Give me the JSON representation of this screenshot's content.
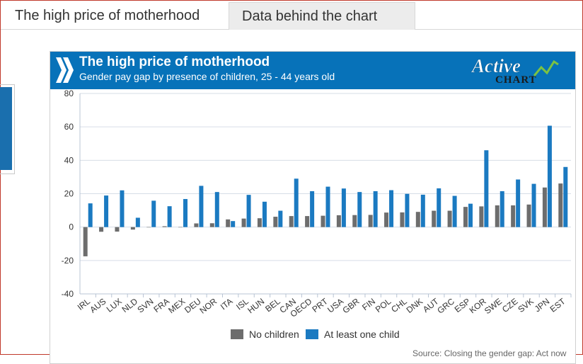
{
  "tabs": [
    {
      "label": "The high price of motherhood"
    },
    {
      "label": "Data behind the chart"
    }
  ],
  "header": {
    "title": "The high price of motherhood",
    "subtitle": "Gender pay gap by presence of children, 25 - 44 years old",
    "logo_top": "Active",
    "logo_bottom": "CHART"
  },
  "source_text": "Source: Closing the gender gap: Act now",
  "colors": {
    "header": "#0772b9",
    "no_children": "#6d6d6d",
    "at_least_one_child": "#1b7ac1"
  },
  "chart_data": {
    "type": "bar",
    "title": "The high price of motherhood",
    "subtitle": "Gender pay gap by presence of children, 25 - 44 years old",
    "ylim": [
      -40,
      80
    ],
    "yticks": [
      -40,
      -20,
      0,
      20,
      40,
      60,
      80
    ],
    "grid": true,
    "legend_position": "bottom",
    "categories": [
      "IRL",
      "AUS",
      "LUX",
      "NLD",
      "SVN",
      "FRA",
      "MEX",
      "DEU",
      "NOR",
      "ITA",
      "ISL",
      "HUN",
      "BEL",
      "CAN",
      "OECD",
      "PRT",
      "USA",
      "GBR",
      "FIN",
      "POL",
      "CHL",
      "DNK",
      "AUT",
      "GRC",
      "ESP",
      "KOR",
      "SWE",
      "CZE",
      "SVK",
      "JPN",
      "EST"
    ],
    "series": [
      {
        "name": "No children",
        "color": "#6d6d6d",
        "values": [
          -17.5,
          -2.8,
          -2.7,
          -1.5,
          0,
          0.5,
          0,
          2.2,
          2.3,
          4.6,
          5.1,
          5.3,
          6.2,
          6.6,
          6.6,
          6.8,
          7.1,
          7.2,
          7.3,
          8.7,
          8.8,
          9.1,
          9.8,
          9.8,
          12.1,
          12.4,
          13.0,
          13.0,
          13.5,
          23.7,
          26.1
        ]
      },
      {
        "name": "At least one child",
        "color": "#1b7ac1",
        "values": [
          14.2,
          18.9,
          22.0,
          5.6,
          15.8,
          12.5,
          16.8,
          24.7,
          21.0,
          3.6,
          19.3,
          15.2,
          9.8,
          29.0,
          21.5,
          24.2,
          23.1,
          21.0,
          21.5,
          22.1,
          19.9,
          19.4,
          23.2,
          18.7,
          14.0,
          46.0,
          21.5,
          28.5,
          25.9,
          60.7,
          36.0
        ]
      }
    ]
  }
}
